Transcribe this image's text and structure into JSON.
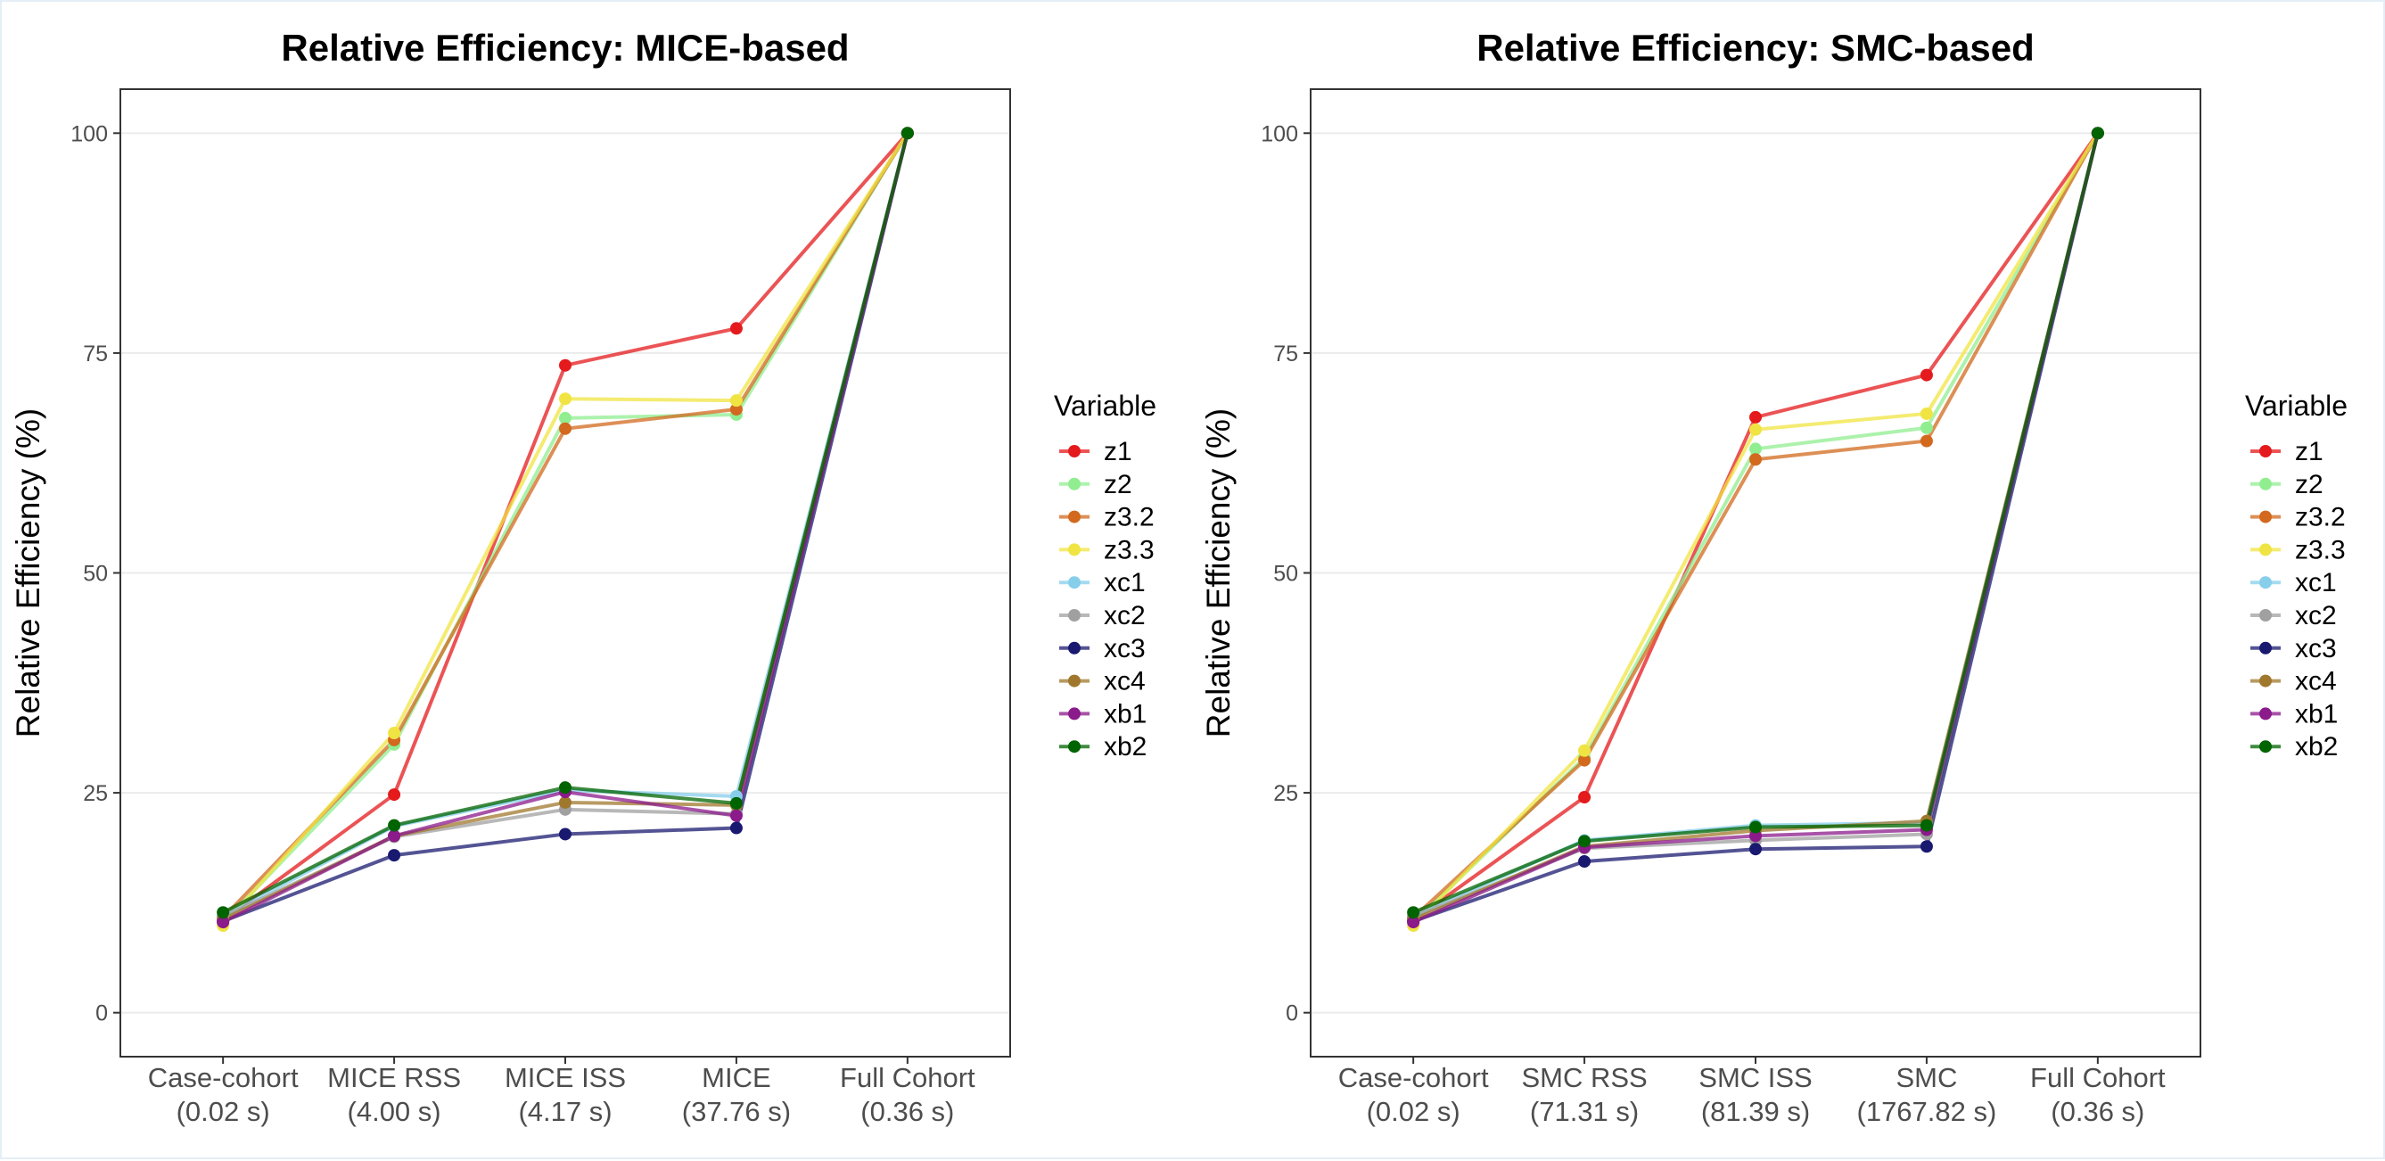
{
  "chart_data": [
    {
      "type": "line",
      "title": "Relative Efficiency: MICE-based",
      "ylabel": "Relative Efficiency (%)",
      "xlabel": "",
      "ylim": [
        -5,
        105
      ],
      "yticks": [
        0,
        25,
        50,
        75,
        100
      ],
      "categories": [
        [
          "Case-cohort",
          "(0.02 s)"
        ],
        [
          "MICE RSS",
          "(4.00 s)"
        ],
        [
          "MICE ISS",
          "(4.17 s)"
        ],
        [
          "MICE",
          "(37.76 s)"
        ],
        [
          "Full Cohort",
          "(0.36 s)"
        ]
      ],
      "legend_title": "Variable",
      "legend_position": "right",
      "series": [
        {
          "name": "z1",
          "color": "#E41A1C",
          "values": [
            10.5,
            24.8,
            73.6,
            77.8,
            100
          ]
        },
        {
          "name": "z2",
          "color": "#90EE90",
          "values": [
            10.2,
            30.5,
            67.6,
            68.0,
            100
          ]
        },
        {
          "name": "z3.2",
          "color": "#D2691E",
          "values": [
            10.8,
            31.0,
            66.4,
            68.6,
            100
          ]
        },
        {
          "name": "z3.3",
          "color": "#F0E442",
          "values": [
            9.9,
            31.8,
            69.8,
            69.6,
            100
          ]
        },
        {
          "name": "xc1",
          "color": "#87CEEB",
          "values": [
            11.0,
            21.2,
            25.3,
            24.6,
            100
          ]
        },
        {
          "name": "xc2",
          "color": "#A0A0A0",
          "values": [
            10.9,
            20.0,
            23.1,
            22.6,
            100
          ]
        },
        {
          "name": "xc3",
          "color": "#191970",
          "values": [
            10.4,
            17.9,
            20.3,
            21.0,
            100
          ]
        },
        {
          "name": "xc4",
          "color": "#A0782D",
          "values": [
            10.6,
            20.1,
            23.9,
            23.6,
            100
          ]
        },
        {
          "name": "xb1",
          "color": "#8B1A8B",
          "values": [
            10.3,
            20.1,
            25.1,
            22.4,
            100
          ]
        },
        {
          "name": "xb2",
          "color": "#006400",
          "values": [
            11.4,
            21.3,
            25.6,
            23.8,
            100
          ]
        }
      ]
    },
    {
      "type": "line",
      "title": "Relative Efficiency: SMC-based",
      "ylabel": "Relative Efficiency (%)",
      "xlabel": "",
      "ylim": [
        -5,
        105
      ],
      "yticks": [
        0,
        25,
        50,
        75,
        100
      ],
      "categories": [
        [
          "Case-cohort",
          "(0.02 s)"
        ],
        [
          "SMC RSS",
          "(71.31 s)"
        ],
        [
          "SMC ISS",
          "(81.39 s)"
        ],
        [
          "SMC",
          "(1767.82 s)"
        ],
        [
          "Full Cohort",
          "(0.36 s)"
        ]
      ],
      "legend_title": "Variable",
      "legend_position": "right",
      "series": [
        {
          "name": "z1",
          "color": "#E41A1C",
          "values": [
            10.5,
            24.5,
            67.7,
            72.5,
            100
          ]
        },
        {
          "name": "z2",
          "color": "#90EE90",
          "values": [
            10.2,
            29.0,
            64.1,
            66.5,
            100
          ]
        },
        {
          "name": "z3.2",
          "color": "#D2691E",
          "values": [
            10.8,
            28.7,
            62.9,
            65.0,
            100
          ]
        },
        {
          "name": "z3.3",
          "color": "#F0E442",
          "values": [
            9.9,
            29.8,
            66.3,
            68.1,
            100
          ]
        },
        {
          "name": "xc1",
          "color": "#87CEEB",
          "values": [
            11.0,
            19.6,
            21.3,
            21.6,
            100
          ]
        },
        {
          "name": "xc2",
          "color": "#A0A0A0",
          "values": [
            10.9,
            18.7,
            19.6,
            20.3,
            100
          ]
        },
        {
          "name": "xc3",
          "color": "#191970",
          "values": [
            10.4,
            17.2,
            18.6,
            18.9,
            100
          ]
        },
        {
          "name": "xc4",
          "color": "#A0782D",
          "values": [
            10.6,
            18.9,
            20.7,
            21.8,
            100
          ]
        },
        {
          "name": "xb1",
          "color": "#8B1A8B",
          "values": [
            10.3,
            18.8,
            20.1,
            20.8,
            100
          ]
        },
        {
          "name": "xb2",
          "color": "#006400",
          "values": [
            11.4,
            19.5,
            21.1,
            21.3,
            100
          ]
        }
      ]
    }
  ]
}
